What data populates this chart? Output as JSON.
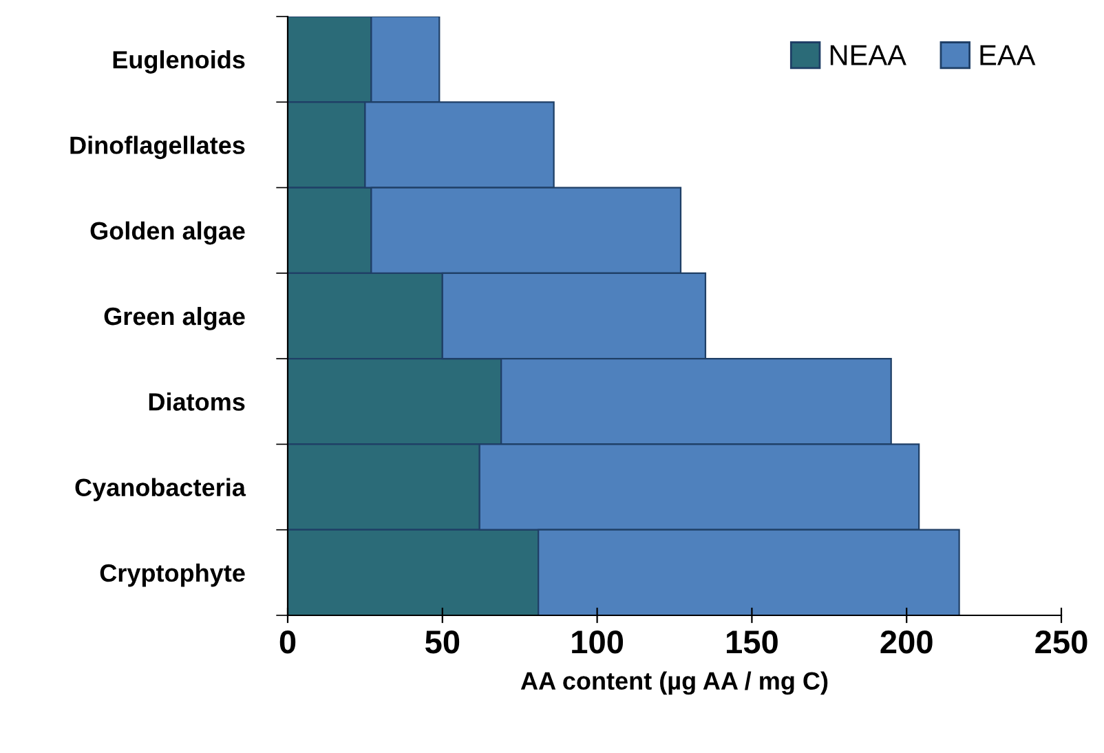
{
  "chart_data": {
    "type": "bar",
    "orientation": "horizontal",
    "stacked": true,
    "categories": [
      "Euglenoids",
      "Dinoflagellates",
      "Golden algae",
      "Green algae",
      "Diatoms",
      "Cyanobacteria",
      "Cryptophyte"
    ],
    "series": [
      {
        "name": "NEAA",
        "color": "#2b6b78",
        "values": [
          27,
          25,
          27,
          50,
          69,
          62,
          81
        ]
      },
      {
        "name": "EAA",
        "color": "#4f81bd",
        "values": [
          22,
          61,
          100,
          85,
          126,
          142,
          136
        ]
      }
    ],
    "xlabel": "AA content (µg AA / mg C)",
    "xlim": [
      0,
      250
    ],
    "xticks": [
      0,
      50,
      100,
      150,
      200,
      250
    ],
    "legend": "top right",
    "grid": false
  }
}
